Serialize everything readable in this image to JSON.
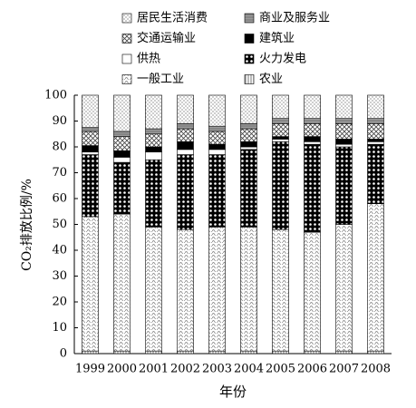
{
  "chart_data": {
    "type": "stacked_bar",
    "categories": [
      "1999",
      "2000",
      "2001",
      "2002",
      "2003",
      "2004",
      "2005",
      "2006",
      "2007",
      "2008"
    ],
    "series": [
      {
        "name": "居民生活消费",
        "color": "#ffffff",
        "values": [
          12.5,
          14,
          13,
          11,
          12,
          11,
          9,
          9,
          9,
          9
        ]
      },
      {
        "name": "商业及服务业",
        "color": "#9a9a9a",
        "values": [
          1.5,
          2,
          2,
          2,
          2,
          2,
          2,
          2,
          2,
          2
        ]
      },
      {
        "name": "交通运输业",
        "color": "#ffffff",
        "values": [
          5.5,
          5.5,
          5,
          5,
          5,
          5,
          5,
          5,
          6,
          6
        ]
      },
      {
        "name": "建筑业",
        "color": "#000000",
        "values": [
          2.5,
          2.5,
          2,
          3,
          2,
          2,
          1,
          2,
          2,
          1
        ]
      },
      {
        "name": "供热",
        "color": "#ffffff",
        "values": [
          1,
          2,
          3,
          2,
          2,
          1,
          1,
          1,
          1,
          1
        ]
      },
      {
        "name": "火力发电",
        "color": "#000000",
        "values": [
          24,
          20,
          26,
          29,
          28,
          30,
          34,
          34,
          30,
          23
        ]
      },
      {
        "name": "一般工业",
        "color": "#ffffff",
        "values": [
          52,
          53,
          48,
          47,
          48,
          48,
          47,
          46,
          49,
          57
        ]
      },
      {
        "name": "农业",
        "color": "#ffffff",
        "values": [
          1,
          1,
          1,
          1,
          1,
          1,
          1,
          1,
          1,
          1
        ]
      }
    ],
    "xlabel": "年份",
    "ylabel": "CO₂排放比例/%",
    "ylim": [
      0,
      100
    ],
    "yticks": [
      0,
      10,
      20,
      30,
      40,
      50,
      60,
      70,
      80,
      90,
      100
    ]
  }
}
